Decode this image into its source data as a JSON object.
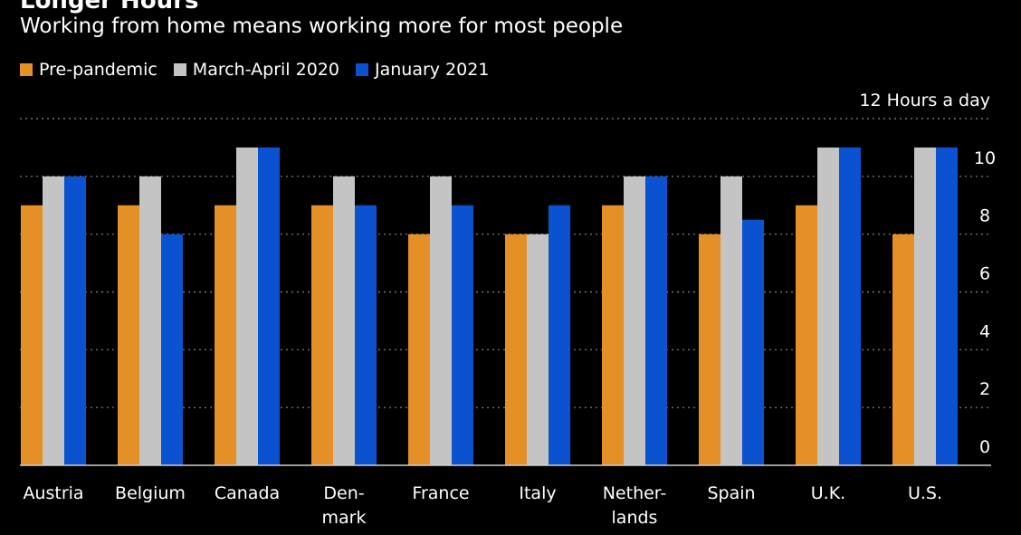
{
  "chart_data": {
    "type": "bar",
    "title": "Longer Hours",
    "subtitle": "Working from home means working more for most people",
    "y_unit_label": "12 Hours a day",
    "ylim": [
      0,
      12
    ],
    "yticks": [
      "0",
      "2",
      "4",
      "6",
      "8",
      "10"
    ],
    "categories": [
      [
        "Austria"
      ],
      [
        "Belgium"
      ],
      [
        "Canada"
      ],
      [
        "Den-",
        "mark"
      ],
      [
        "France"
      ],
      [
        "Italy"
      ],
      [
        "Nether-",
        "lands"
      ],
      [
        "Spain"
      ],
      [
        "U.K."
      ],
      [
        "U.S."
      ]
    ],
    "series": [
      {
        "name": "Pre-pandemic",
        "color": "#e58f27",
        "values": [
          9,
          9,
          9,
          9,
          8,
          8,
          9,
          8,
          9,
          8
        ]
      },
      {
        "name": "March-April 2020",
        "color": "#c4c4c4",
        "values": [
          10,
          10,
          11,
          10,
          10,
          8,
          10,
          10,
          11,
          11
        ]
      },
      {
        "name": "January 2021",
        "color": "#0a52cf",
        "values": [
          10,
          8,
          11,
          9,
          9,
          9,
          10,
          8.5,
          11,
          11
        ]
      }
    ]
  }
}
